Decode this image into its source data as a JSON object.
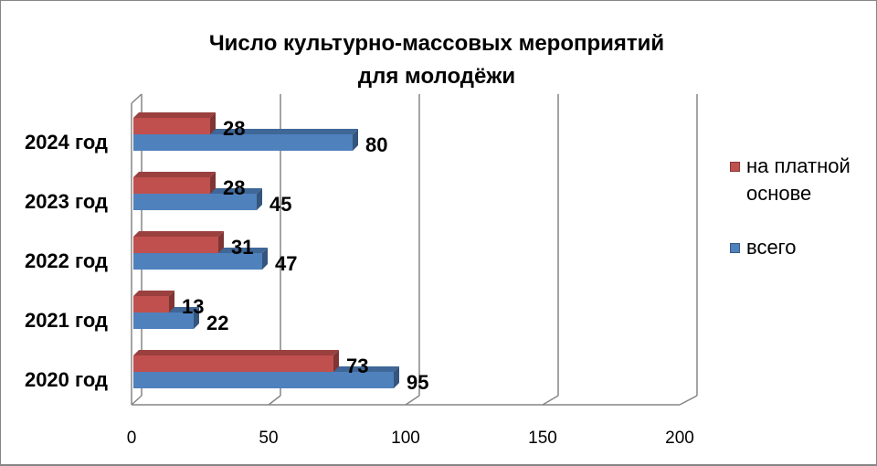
{
  "chart_data": {
    "type": "bar",
    "orientation": "horizontal",
    "3d": true,
    "title": [
      "Число культурно-массовых мероприятий",
      "для молодёжи"
    ],
    "categories": [
      "2024 год",
      "2023 год",
      "2022 год",
      "2021 год",
      "2020 год"
    ],
    "series": [
      {
        "name": "на платной основе",
        "color": "#C0504D",
        "values": [
          28,
          28,
          31,
          13,
          73
        ]
      },
      {
        "name": "всего",
        "color": "#4F81BD",
        "values": [
          80,
          45,
          47,
          22,
          95
        ]
      }
    ],
    "xlim": [
      0,
      200
    ],
    "xticks": [
      0,
      50,
      100,
      150,
      200
    ],
    "grid": true,
    "legend": "right",
    "data_labels": true
  }
}
